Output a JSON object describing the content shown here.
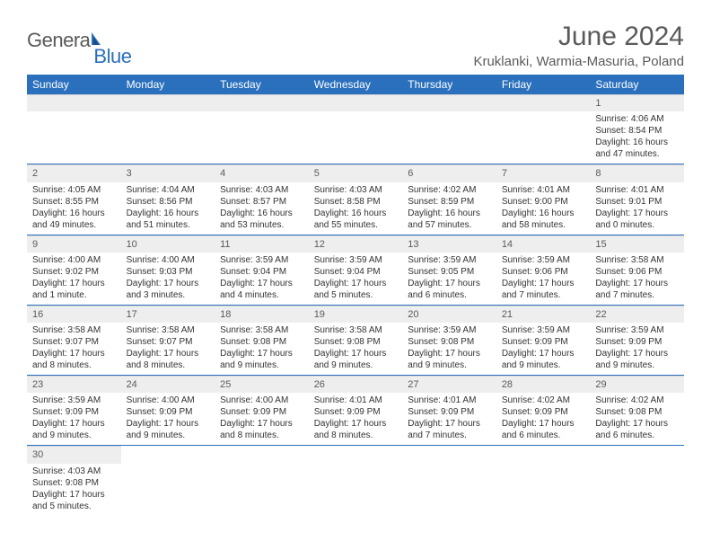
{
  "brand": {
    "part1": "Genera",
    "part2": "Blue"
  },
  "title": "June 2024",
  "location": "Kruklanki, Warmia-Masuria, Poland",
  "colors": {
    "header_band": "#2a70bd",
    "daynum_bg": "#eeeeee",
    "rule": "#2a70bd",
    "text": "#333333",
    "title_text": "#5a5a5a",
    "brand_gray": "#5a5a5a",
    "brand_blue": "#2a70bd",
    "background": "#ffffff"
  },
  "fonts": {
    "title_size_pt": 22,
    "location_size_pt": 11,
    "weekday_size_pt": 9,
    "daynum_size_pt": 8,
    "body_size_pt": 7.5
  },
  "weekdays": [
    "Sunday",
    "Monday",
    "Tuesday",
    "Wednesday",
    "Thursday",
    "Friday",
    "Saturday"
  ],
  "weeks": [
    [
      {
        "blank": true
      },
      {
        "blank": true
      },
      {
        "blank": true
      },
      {
        "blank": true
      },
      {
        "blank": true
      },
      {
        "blank": true
      },
      {
        "day": "1",
        "sunrise": "Sunrise: 4:06 AM",
        "sunset": "Sunset: 8:54 PM",
        "daylight": "Daylight: 16 hours and 47 minutes."
      }
    ],
    [
      {
        "day": "2",
        "sunrise": "Sunrise: 4:05 AM",
        "sunset": "Sunset: 8:55 PM",
        "daylight": "Daylight: 16 hours and 49 minutes."
      },
      {
        "day": "3",
        "sunrise": "Sunrise: 4:04 AM",
        "sunset": "Sunset: 8:56 PM",
        "daylight": "Daylight: 16 hours and 51 minutes."
      },
      {
        "day": "4",
        "sunrise": "Sunrise: 4:03 AM",
        "sunset": "Sunset: 8:57 PM",
        "daylight": "Daylight: 16 hours and 53 minutes."
      },
      {
        "day": "5",
        "sunrise": "Sunrise: 4:03 AM",
        "sunset": "Sunset: 8:58 PM",
        "daylight": "Daylight: 16 hours and 55 minutes."
      },
      {
        "day": "6",
        "sunrise": "Sunrise: 4:02 AM",
        "sunset": "Sunset: 8:59 PM",
        "daylight": "Daylight: 16 hours and 57 minutes."
      },
      {
        "day": "7",
        "sunrise": "Sunrise: 4:01 AM",
        "sunset": "Sunset: 9:00 PM",
        "daylight": "Daylight: 16 hours and 58 minutes."
      },
      {
        "day": "8",
        "sunrise": "Sunrise: 4:01 AM",
        "sunset": "Sunset: 9:01 PM",
        "daylight": "Daylight: 17 hours and 0 minutes."
      }
    ],
    [
      {
        "day": "9",
        "sunrise": "Sunrise: 4:00 AM",
        "sunset": "Sunset: 9:02 PM",
        "daylight": "Daylight: 17 hours and 1 minute."
      },
      {
        "day": "10",
        "sunrise": "Sunrise: 4:00 AM",
        "sunset": "Sunset: 9:03 PM",
        "daylight": "Daylight: 17 hours and 3 minutes."
      },
      {
        "day": "11",
        "sunrise": "Sunrise: 3:59 AM",
        "sunset": "Sunset: 9:04 PM",
        "daylight": "Daylight: 17 hours and 4 minutes."
      },
      {
        "day": "12",
        "sunrise": "Sunrise: 3:59 AM",
        "sunset": "Sunset: 9:04 PM",
        "daylight": "Daylight: 17 hours and 5 minutes."
      },
      {
        "day": "13",
        "sunrise": "Sunrise: 3:59 AM",
        "sunset": "Sunset: 9:05 PM",
        "daylight": "Daylight: 17 hours and 6 minutes."
      },
      {
        "day": "14",
        "sunrise": "Sunrise: 3:59 AM",
        "sunset": "Sunset: 9:06 PM",
        "daylight": "Daylight: 17 hours and 7 minutes."
      },
      {
        "day": "15",
        "sunrise": "Sunrise: 3:58 AM",
        "sunset": "Sunset: 9:06 PM",
        "daylight": "Daylight: 17 hours and 7 minutes."
      }
    ],
    [
      {
        "day": "16",
        "sunrise": "Sunrise: 3:58 AM",
        "sunset": "Sunset: 9:07 PM",
        "daylight": "Daylight: 17 hours and 8 minutes."
      },
      {
        "day": "17",
        "sunrise": "Sunrise: 3:58 AM",
        "sunset": "Sunset: 9:07 PM",
        "daylight": "Daylight: 17 hours and 8 minutes."
      },
      {
        "day": "18",
        "sunrise": "Sunrise: 3:58 AM",
        "sunset": "Sunset: 9:08 PM",
        "daylight": "Daylight: 17 hours and 9 minutes."
      },
      {
        "day": "19",
        "sunrise": "Sunrise: 3:58 AM",
        "sunset": "Sunset: 9:08 PM",
        "daylight": "Daylight: 17 hours and 9 minutes."
      },
      {
        "day": "20",
        "sunrise": "Sunrise: 3:59 AM",
        "sunset": "Sunset: 9:08 PM",
        "daylight": "Daylight: 17 hours and 9 minutes."
      },
      {
        "day": "21",
        "sunrise": "Sunrise: 3:59 AM",
        "sunset": "Sunset: 9:09 PM",
        "daylight": "Daylight: 17 hours and 9 minutes."
      },
      {
        "day": "22",
        "sunrise": "Sunrise: 3:59 AM",
        "sunset": "Sunset: 9:09 PM",
        "daylight": "Daylight: 17 hours and 9 minutes."
      }
    ],
    [
      {
        "day": "23",
        "sunrise": "Sunrise: 3:59 AM",
        "sunset": "Sunset: 9:09 PM",
        "daylight": "Daylight: 17 hours and 9 minutes."
      },
      {
        "day": "24",
        "sunrise": "Sunrise: 4:00 AM",
        "sunset": "Sunset: 9:09 PM",
        "daylight": "Daylight: 17 hours and 9 minutes."
      },
      {
        "day": "25",
        "sunrise": "Sunrise: 4:00 AM",
        "sunset": "Sunset: 9:09 PM",
        "daylight": "Daylight: 17 hours and 8 minutes."
      },
      {
        "day": "26",
        "sunrise": "Sunrise: 4:01 AM",
        "sunset": "Sunset: 9:09 PM",
        "daylight": "Daylight: 17 hours and 8 minutes."
      },
      {
        "day": "27",
        "sunrise": "Sunrise: 4:01 AM",
        "sunset": "Sunset: 9:09 PM",
        "daylight": "Daylight: 17 hours and 7 minutes."
      },
      {
        "day": "28",
        "sunrise": "Sunrise: 4:02 AM",
        "sunset": "Sunset: 9:09 PM",
        "daylight": "Daylight: 17 hours and 6 minutes."
      },
      {
        "day": "29",
        "sunrise": "Sunrise: 4:02 AM",
        "sunset": "Sunset: 9:08 PM",
        "daylight": "Daylight: 17 hours and 6 minutes."
      }
    ],
    [
      {
        "day": "30",
        "sunrise": "Sunrise: 4:03 AM",
        "sunset": "Sunset: 9:08 PM",
        "daylight": "Daylight: 17 hours and 5 minutes."
      },
      {
        "blank": true
      },
      {
        "blank": true
      },
      {
        "blank": true
      },
      {
        "blank": true
      },
      {
        "blank": true
      },
      {
        "blank": true
      }
    ]
  ]
}
